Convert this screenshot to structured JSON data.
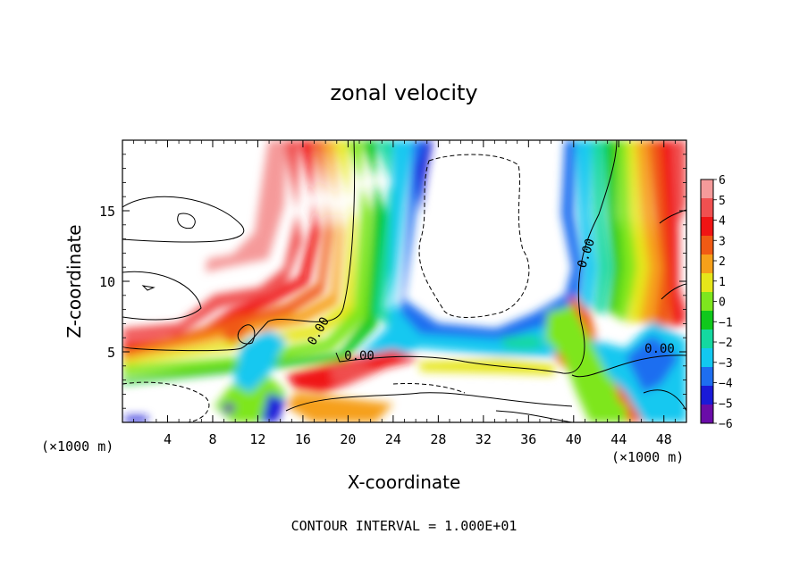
{
  "chart_data": {
    "type": "heatmap",
    "title": "zonal velocity",
    "xlabel": "X-coordinate",
    "ylabel": "Z-coordinate",
    "x_unit_label": "(×1000 m)",
    "x_unit_label_right": "(×1000 m)",
    "xlim": [
      0,
      50
    ],
    "ylim": [
      0,
      20
    ],
    "x_ticks": [
      "4",
      "8",
      "12",
      "16",
      "20",
      "24",
      "28",
      "32",
      "36",
      "40",
      "44",
      "48"
    ],
    "y_ticks": [
      "5",
      "10",
      "15"
    ],
    "colorbar": {
      "ticks": [
        "6",
        "5",
        "4",
        "3",
        "2",
        "1",
        "0",
        "−1",
        "−2",
        "−3",
        "−4",
        "−5",
        "−6"
      ],
      "min": -6,
      "max": 6,
      "colors": [
        "#6a0ca8",
        "#1a1ad8",
        "#1e6ef0",
        "#12c8f0",
        "#14d8a0",
        "#10c81c",
        "#7ee61e",
        "#e6e61a",
        "#f6a01a",
        "#f05a14",
        "#f01414",
        "#f05050",
        "#f59a9a"
      ]
    },
    "contour_labels": [
      "0.00",
      "0.00",
      "0.00",
      "0.00"
    ],
    "note": "CONTOUR INTERVAL = 1.000E+01"
  }
}
